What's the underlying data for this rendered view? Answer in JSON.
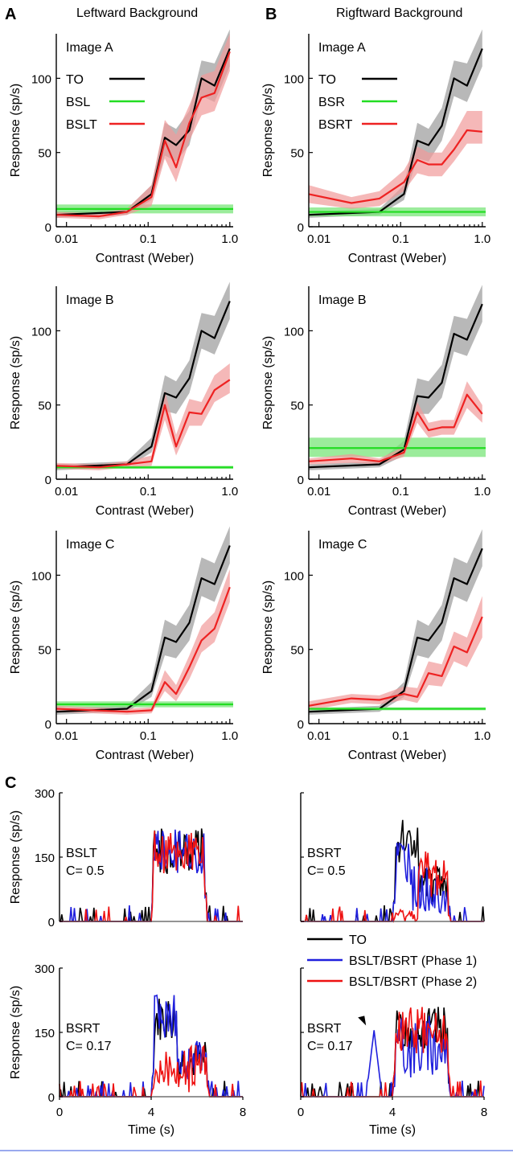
{
  "panel_letters": {
    "a": "A",
    "b": "B",
    "c": "C"
  },
  "column_titles": {
    "left": "Leftward Background",
    "right": "Rigftward Background"
  },
  "colors": {
    "TO": "#000000",
    "background": "#22dd22",
    "combined": "#ee2222",
    "TO_band": "#9a9a9a",
    "background_band": "#7ae67a",
    "combined_band": "#f19a9a",
    "phase1": "#1f1fdd",
    "phase2": "#ee1111",
    "frame_rule": "#9aa9ee"
  },
  "chart_data": [
    {
      "id": "A1",
      "type": "line",
      "panel": "A",
      "subtitle": "Image A",
      "xlabel": "Contrast (Weber)",
      "ylabel": "Response (sp/s)",
      "xscale": "log",
      "xlim": [
        0.0075,
        1.1
      ],
      "ylim": [
        0,
        130
      ],
      "xticks": [
        0.01,
        0.1,
        1.0
      ],
      "xtick_labels": [
        "0.01",
        "0.1",
        "1.0"
      ],
      "yticks": [
        0,
        50,
        100
      ],
      "ytick_labels": [
        "0",
        "50",
        "100"
      ],
      "legend": {
        "position": "top-left",
        "entries": [
          "TO",
          "BSL",
          "BSLT"
        ]
      },
      "series": [
        {
          "name": "TO",
          "color_key": "TO",
          "x": [
            0.0075,
            0.055,
            0.11,
            0.16,
            0.22,
            0.32,
            0.45,
            0.65,
            1.0
          ],
          "values": [
            8,
            10,
            22,
            60,
            55,
            65,
            100,
            95,
            120
          ],
          "lower": [
            6,
            8,
            18,
            48,
            44,
            55,
            88,
            84,
            108
          ],
          "upper": [
            10,
            12,
            28,
            70,
            66,
            78,
            112,
            110,
            133
          ]
        },
        {
          "name": "BSL",
          "color_key": "background",
          "flat": true,
          "value": 12,
          "lower": 9,
          "upper": 15
        },
        {
          "name": "BSLT",
          "color_key": "combined",
          "x": [
            0.0075,
            0.025,
            0.055,
            0.11,
            0.16,
            0.22,
            0.32,
            0.45,
            0.65,
            1.0
          ],
          "values": [
            8,
            7,
            10,
            20,
            58,
            40,
            70,
            87,
            90,
            118
          ],
          "lower": [
            6,
            5,
            8,
            14,
            46,
            30,
            58,
            75,
            78,
            105
          ],
          "upper": [
            10,
            9,
            12,
            28,
            72,
            62,
            82,
            102,
            105,
            130
          ]
        }
      ]
    },
    {
      "id": "B1",
      "type": "line",
      "panel": "B",
      "subtitle": "Image A",
      "xlabel": "Contrast (Weber)",
      "ylabel": "Response (sp/s)",
      "xscale": "log",
      "xlim": [
        0.0075,
        1.1
      ],
      "ylim": [
        0,
        130
      ],
      "xticks": [
        0.01,
        0.1,
        1.0
      ],
      "xtick_labels": [
        "0.01",
        "0.1",
        "1.0"
      ],
      "yticks": [
        0,
        50,
        100
      ],
      "ytick_labels": [
        "0",
        "50",
        "100"
      ],
      "legend": {
        "position": "top-left",
        "entries": [
          "TO",
          "BSR",
          "BSRT"
        ]
      },
      "series": [
        {
          "name": "TO",
          "color_key": "TO",
          "x": [
            0.0075,
            0.055,
            0.11,
            0.16,
            0.22,
            0.32,
            0.45,
            0.65,
            1.0
          ],
          "values": [
            8,
            10,
            22,
            58,
            55,
            68,
            100,
            95,
            120
          ],
          "lower": [
            6,
            8,
            18,
            46,
            44,
            58,
            88,
            84,
            108
          ],
          "upper": [
            10,
            12,
            28,
            70,
            66,
            80,
            112,
            110,
            133
          ]
        },
        {
          "name": "BSR",
          "color_key": "background",
          "flat": true,
          "value": 10,
          "lower": 7,
          "upper": 13
        },
        {
          "name": "BSRT",
          "color_key": "combined",
          "x": [
            0.0075,
            0.025,
            0.055,
            0.11,
            0.16,
            0.22,
            0.32,
            0.45,
            0.65,
            1.0
          ],
          "values": [
            22,
            16,
            19,
            30,
            45,
            42,
            42,
            52,
            65,
            64
          ],
          "lower": [
            16,
            12,
            14,
            24,
            36,
            34,
            34,
            44,
            56,
            56
          ],
          "upper": [
            28,
            20,
            24,
            38,
            54,
            50,
            50,
            62,
            78,
            78
          ]
        }
      ]
    },
    {
      "id": "A2",
      "type": "line",
      "panel": "A",
      "subtitle": "Image B",
      "xlabel": "Contrast (Weber)",
      "ylabel": "Response (sp/s)",
      "xscale": "log",
      "xlim": [
        0.0075,
        1.1
      ],
      "ylim": [
        0,
        130
      ],
      "xticks": [
        0.01,
        0.1,
        1.0
      ],
      "xtick_labels": [
        "0.01",
        "0.1",
        "1.0"
      ],
      "yticks": [
        0,
        50,
        100
      ],
      "ytick_labels": [
        "0",
        "50",
        "100"
      ],
      "series": [
        {
          "name": "TO",
          "color_key": "TO",
          "x": [
            0.0075,
            0.055,
            0.11,
            0.16,
            0.22,
            0.32,
            0.45,
            0.65,
            1.0
          ],
          "values": [
            8,
            10,
            22,
            58,
            55,
            68,
            100,
            95,
            120
          ],
          "lower": [
            6,
            8,
            18,
            46,
            44,
            58,
            88,
            84,
            108
          ],
          "upper": [
            10,
            12,
            28,
            70,
            66,
            80,
            112,
            110,
            133
          ]
        },
        {
          "name": "BSL",
          "color_key": "background",
          "flat": true,
          "value": 8,
          "lower": 7,
          "upper": 9
        },
        {
          "name": "BSLT",
          "color_key": "combined",
          "x": [
            0.0075,
            0.025,
            0.055,
            0.11,
            0.16,
            0.22,
            0.32,
            0.45,
            0.65,
            1.0
          ],
          "values": [
            9,
            8,
            10,
            12,
            50,
            22,
            45,
            44,
            60,
            67
          ],
          "lower": [
            7,
            6,
            8,
            9,
            40,
            16,
            36,
            36,
            52,
            58
          ],
          "upper": [
            11,
            10,
            12,
            16,
            60,
            30,
            54,
            52,
            70,
            78
          ]
        }
      ]
    },
    {
      "id": "B2",
      "type": "line",
      "panel": "B",
      "subtitle": "Image B",
      "xlabel": "Contrast (Weber)",
      "ylabel": "Response (sp/s)",
      "xscale": "log",
      "xlim": [
        0.0075,
        1.1
      ],
      "ylim": [
        0,
        130
      ],
      "xticks": [
        0.01,
        0.1,
        1.0
      ],
      "xtick_labels": [
        "0.01",
        "0.1",
        "1.0"
      ],
      "yticks": [
        0,
        50,
        100
      ],
      "ytick_labels": [
        "0",
        "50",
        "100"
      ],
      "series": [
        {
          "name": "TO",
          "color_key": "TO",
          "x": [
            0.0075,
            0.055,
            0.11,
            0.16,
            0.22,
            0.32,
            0.45,
            0.65,
            1.0
          ],
          "values": [
            8,
            10,
            20,
            56,
            55,
            65,
            98,
            94,
            118
          ],
          "lower": [
            6,
            8,
            16,
            44,
            44,
            55,
            86,
            83,
            106
          ],
          "upper": [
            10,
            12,
            26,
            68,
            66,
            77,
            110,
            108,
            131
          ]
        },
        {
          "name": "BSR",
          "color_key": "background",
          "flat": true,
          "value": 21,
          "lower": 15,
          "upper": 28
        },
        {
          "name": "BSRT",
          "color_key": "combined",
          "x": [
            0.0075,
            0.025,
            0.055,
            0.11,
            0.16,
            0.22,
            0.32,
            0.45,
            0.65,
            1.0
          ],
          "values": [
            12,
            14,
            12,
            18,
            45,
            33,
            35,
            35,
            57,
            44
          ],
          "lower": [
            10,
            11,
            10,
            15,
            38,
            28,
            30,
            30,
            48,
            38
          ],
          "upper": [
            14,
            17,
            14,
            22,
            52,
            38,
            40,
            40,
            66,
            50
          ]
        }
      ]
    },
    {
      "id": "A3",
      "type": "line",
      "panel": "A",
      "subtitle": "Image C",
      "xlabel": "Contrast (Weber)",
      "ylabel": "Response (sp/s)",
      "xscale": "log",
      "xlim": [
        0.0075,
        1.1
      ],
      "ylim": [
        0,
        130
      ],
      "xticks": [
        0.01,
        0.1,
        1.0
      ],
      "xtick_labels": [
        "0.01",
        "0.1",
        "1.0"
      ],
      "yticks": [
        0,
        50,
        100
      ],
      "ytick_labels": [
        "0",
        "50",
        "100"
      ],
      "series": [
        {
          "name": "TO",
          "color_key": "TO",
          "x": [
            0.0075,
            0.055,
            0.11,
            0.16,
            0.22,
            0.32,
            0.45,
            0.65,
            1.0
          ],
          "values": [
            8,
            10,
            22,
            58,
            55,
            68,
            98,
            94,
            120
          ],
          "lower": [
            6,
            8,
            18,
            46,
            44,
            56,
            86,
            82,
            108
          ],
          "upper": [
            10,
            12,
            28,
            70,
            66,
            80,
            112,
            108,
            133
          ]
        },
        {
          "name": "BSL",
          "color_key": "background",
          "flat": true,
          "value": 13,
          "lower": 11,
          "upper": 15
        },
        {
          "name": "BSLT",
          "color_key": "combined",
          "x": [
            0.0075,
            0.055,
            0.11,
            0.16,
            0.22,
            0.32,
            0.45,
            0.65,
            1.0
          ],
          "values": [
            10,
            8,
            9,
            28,
            20,
            38,
            56,
            64,
            92
          ],
          "lower": [
            8,
            6,
            7,
            22,
            15,
            30,
            48,
            55,
            82
          ],
          "upper": [
            12,
            10,
            11,
            36,
            26,
            46,
            66,
            75,
            104
          ]
        }
      ]
    },
    {
      "id": "B3",
      "type": "line",
      "panel": "B",
      "subtitle": "Image C",
      "xlabel": "Contrast (Weber)",
      "ylabel": "Response (sp/s)",
      "xscale": "log",
      "xlim": [
        0.0075,
        1.1
      ],
      "ylim": [
        0,
        130
      ],
      "xticks": [
        0.01,
        0.1,
        1.0
      ],
      "xtick_labels": [
        "0.01",
        "0.1",
        "1.0"
      ],
      "yticks": [
        0,
        50,
        100
      ],
      "ytick_labels": [
        "0",
        "50",
        "100"
      ],
      "series": [
        {
          "name": "TO",
          "color_key": "TO",
          "x": [
            0.0075,
            0.055,
            0.11,
            0.16,
            0.22,
            0.32,
            0.45,
            0.65,
            1.0
          ],
          "values": [
            8,
            10,
            22,
            58,
            56,
            68,
            98,
            94,
            118
          ],
          "lower": [
            6,
            8,
            18,
            46,
            44,
            56,
            86,
            82,
            106
          ],
          "upper": [
            10,
            12,
            28,
            70,
            66,
            80,
            112,
            108,
            131
          ]
        },
        {
          "name": "BSR",
          "color_key": "background",
          "flat": true,
          "value": 10,
          "lower": 9,
          "upper": 11
        },
        {
          "name": "BSRT",
          "color_key": "combined",
          "x": [
            0.0075,
            0.025,
            0.055,
            0.11,
            0.16,
            0.22,
            0.32,
            0.45,
            0.65,
            1.0
          ],
          "values": [
            12,
            17,
            16,
            20,
            18,
            34,
            32,
            52,
            48,
            72
          ],
          "lower": [
            9,
            14,
            13,
            16,
            14,
            26,
            25,
            42,
            38,
            58
          ],
          "upper": [
            15,
            20,
            19,
            25,
            24,
            42,
            40,
            62,
            58,
            86
          ]
        }
      ]
    },
    {
      "id": "C1",
      "type": "line",
      "panel": "C",
      "annotation": [
        "BSLT",
        "C= 0.5"
      ],
      "xlabel": "",
      "ylabel": "Response (sp/s)",
      "xlim": [
        0,
        8
      ],
      "ylim": [
        0,
        300
      ],
      "xticks": [],
      "yticks": [
        0,
        150,
        300
      ],
      "ytick_labels": [
        "0",
        "150",
        "300"
      ],
      "stimulus_window": [
        4,
        6.4
      ],
      "series": [
        {
          "name": "TO",
          "color_key": "TO",
          "template": "plateau",
          "seed": 11
        },
        {
          "name": "BSLT/BSRT (Phase 1)",
          "color_key": "phase1",
          "template": "plateau",
          "seed": 23
        },
        {
          "name": "BSLT/BSRT (Phase 2)",
          "color_key": "phase2",
          "template": "plateau",
          "seed": 37
        }
      ]
    },
    {
      "id": "C2",
      "type": "line",
      "panel": "C",
      "annotation": [
        "BSRT",
        "C= 0.5"
      ],
      "xlabel": "",
      "ylabel": "",
      "xlim": [
        0,
        8
      ],
      "ylim": [
        0,
        300
      ],
      "xticks": [],
      "yticks": [
        0,
        150,
        300
      ],
      "ytick_labels": [
        "",
        "",
        ""
      ],
      "stimulus_window": [
        4,
        6.5
      ],
      "series": [
        {
          "name": "TO",
          "color_key": "TO",
          "template": "decay",
          "seed": 5
        },
        {
          "name": "BSLT/BSRT (Phase 1)",
          "color_key": "phase1",
          "template": "decay_low",
          "seed": 19
        },
        {
          "name": "BSLT/BSRT (Phase 2)",
          "color_key": "phase2",
          "template": "late",
          "seed": 41
        }
      ]
    },
    {
      "id": "C3",
      "type": "line",
      "panel": "C",
      "annotation": [
        "BSRT",
        "C= 0.17"
      ],
      "xlabel": "Time (s)",
      "ylabel": "Response (sp/s)",
      "xlim": [
        0,
        8
      ],
      "ylim": [
        0,
        300
      ],
      "xticks": [
        0,
        4,
        8
      ],
      "xtick_labels": [
        "0",
        "4",
        "8"
      ],
      "yticks": [
        0,
        150,
        300
      ],
      "ytick_labels": [
        "0",
        "150",
        "300"
      ],
      "stimulus_window": [
        4,
        6.5
      ],
      "series": [
        {
          "name": "TO",
          "color_key": "TO",
          "template": "decay",
          "seed": 7
        },
        {
          "name": "BSLT/BSRT (Phase 1)",
          "color_key": "phase1",
          "template": "decay",
          "seed": 29
        },
        {
          "name": "BSLT/BSRT (Phase 2)",
          "color_key": "phase2",
          "template": "weak",
          "seed": 53
        }
      ]
    },
    {
      "id": "C4",
      "type": "line",
      "panel": "C",
      "annotation": [
        "BSRT",
        "C= 0.17"
      ],
      "xlabel": "Time (s)",
      "ylabel": "",
      "xlim": [
        0,
        8
      ],
      "ylim": [
        0,
        300
      ],
      "xticks": [
        0,
        4,
        8
      ],
      "xtick_labels": [
        "0",
        "4",
        "8"
      ],
      "yticks": [
        0,
        150,
        300
      ],
      "ytick_labels": [
        "",
        "",
        ""
      ],
      "stimulus_window": [
        4,
        6.5
      ],
      "early_peak": {
        "series": "BSLT/BSRT (Phase 1)",
        "time": 3.2,
        "value": 155
      },
      "series": [
        {
          "name": "TO",
          "color_key": "TO",
          "template": "plateau_mid",
          "seed": 13
        },
        {
          "name": "BSLT/BSRT (Phase 1)",
          "color_key": "phase1",
          "template": "plateau_low",
          "seed": 31
        },
        {
          "name": "BSLT/BSRT (Phase 2)",
          "color_key": "phase2",
          "template": "plateau_mid",
          "seed": 61
        }
      ]
    }
  ],
  "psth_legend": [
    "TO",
    "BSLT/BSRT (Phase 1)",
    "BSLT/BSRT (Phase 2)"
  ]
}
